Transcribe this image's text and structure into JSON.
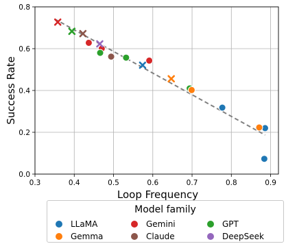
{
  "chart_data": {
    "type": "scatter",
    "xlabel": "Loop Frequency",
    "ylabel": "Success Rate",
    "xlim": [
      0.3,
      0.92
    ],
    "ylim": [
      0.0,
      0.8
    ],
    "xticks": [
      "0.3",
      "0.4",
      "0.5",
      "0.6",
      "0.7",
      "0.8",
      "0.9"
    ],
    "yticks": [
      "0.0",
      "0.2",
      "0.4",
      "0.6",
      "0.8"
    ],
    "grid": true,
    "legend": {
      "title": "Model family",
      "placement": "below",
      "entries": [
        "LLaMA",
        "Gemini",
        "GPT",
        "Gemma",
        "Claude",
        "DeepSeek"
      ]
    },
    "colors": {
      "LLaMA": "#1f77b4",
      "Gemini": "#d62728",
      "GPT": "#2ca02c",
      "Gemma": "#ff7f0e",
      "Claude": "#8c564b",
      "DeepSeek": "#9467bd",
      "trend": "#808080"
    },
    "series": [
      {
        "name": "LLaMA",
        "marker": "circle",
        "points": [
          [
            0.777,
            0.318
          ],
          [
            0.886,
            0.22
          ],
          [
            0.884,
            0.073
          ]
        ]
      },
      {
        "name": "LLaMA",
        "marker": "x",
        "points": [
          [
            0.574,
            0.521
          ]
        ]
      },
      {
        "name": "Gemini",
        "marker": "circle",
        "points": [
          [
            0.437,
            0.628
          ],
          [
            0.47,
            0.6
          ],
          [
            0.591,
            0.543
          ]
        ]
      },
      {
        "name": "Gemini",
        "marker": "x",
        "points": [
          [
            0.358,
            0.727
          ]
        ]
      },
      {
        "name": "GPT",
        "marker": "circle",
        "points": [
          [
            0.466,
            0.58
          ],
          [
            0.532,
            0.557
          ],
          [
            0.694,
            0.41
          ]
        ]
      },
      {
        "name": "GPT",
        "marker": "x",
        "points": [
          [
            0.394,
            0.683
          ]
        ]
      },
      {
        "name": "Gemma",
        "marker": "circle",
        "points": [
          [
            0.699,
            0.402
          ],
          [
            0.871,
            0.223
          ]
        ]
      },
      {
        "name": "Gemma",
        "marker": "x",
        "points": [
          [
            0.647,
            0.456
          ]
        ]
      },
      {
        "name": "Claude",
        "marker": "circle",
        "points": [
          [
            0.494,
            0.562
          ]
        ]
      },
      {
        "name": "Claude",
        "marker": "x",
        "points": [
          [
            0.422,
            0.672
          ]
        ]
      },
      {
        "name": "DeepSeek",
        "marker": "x",
        "points": [
          [
            0.465,
            0.623
          ]
        ]
      }
    ],
    "trendline": {
      "style": "dashed",
      "points": [
        [
          0.35,
          0.742
        ],
        [
          0.886,
          0.187
        ]
      ]
    }
  }
}
